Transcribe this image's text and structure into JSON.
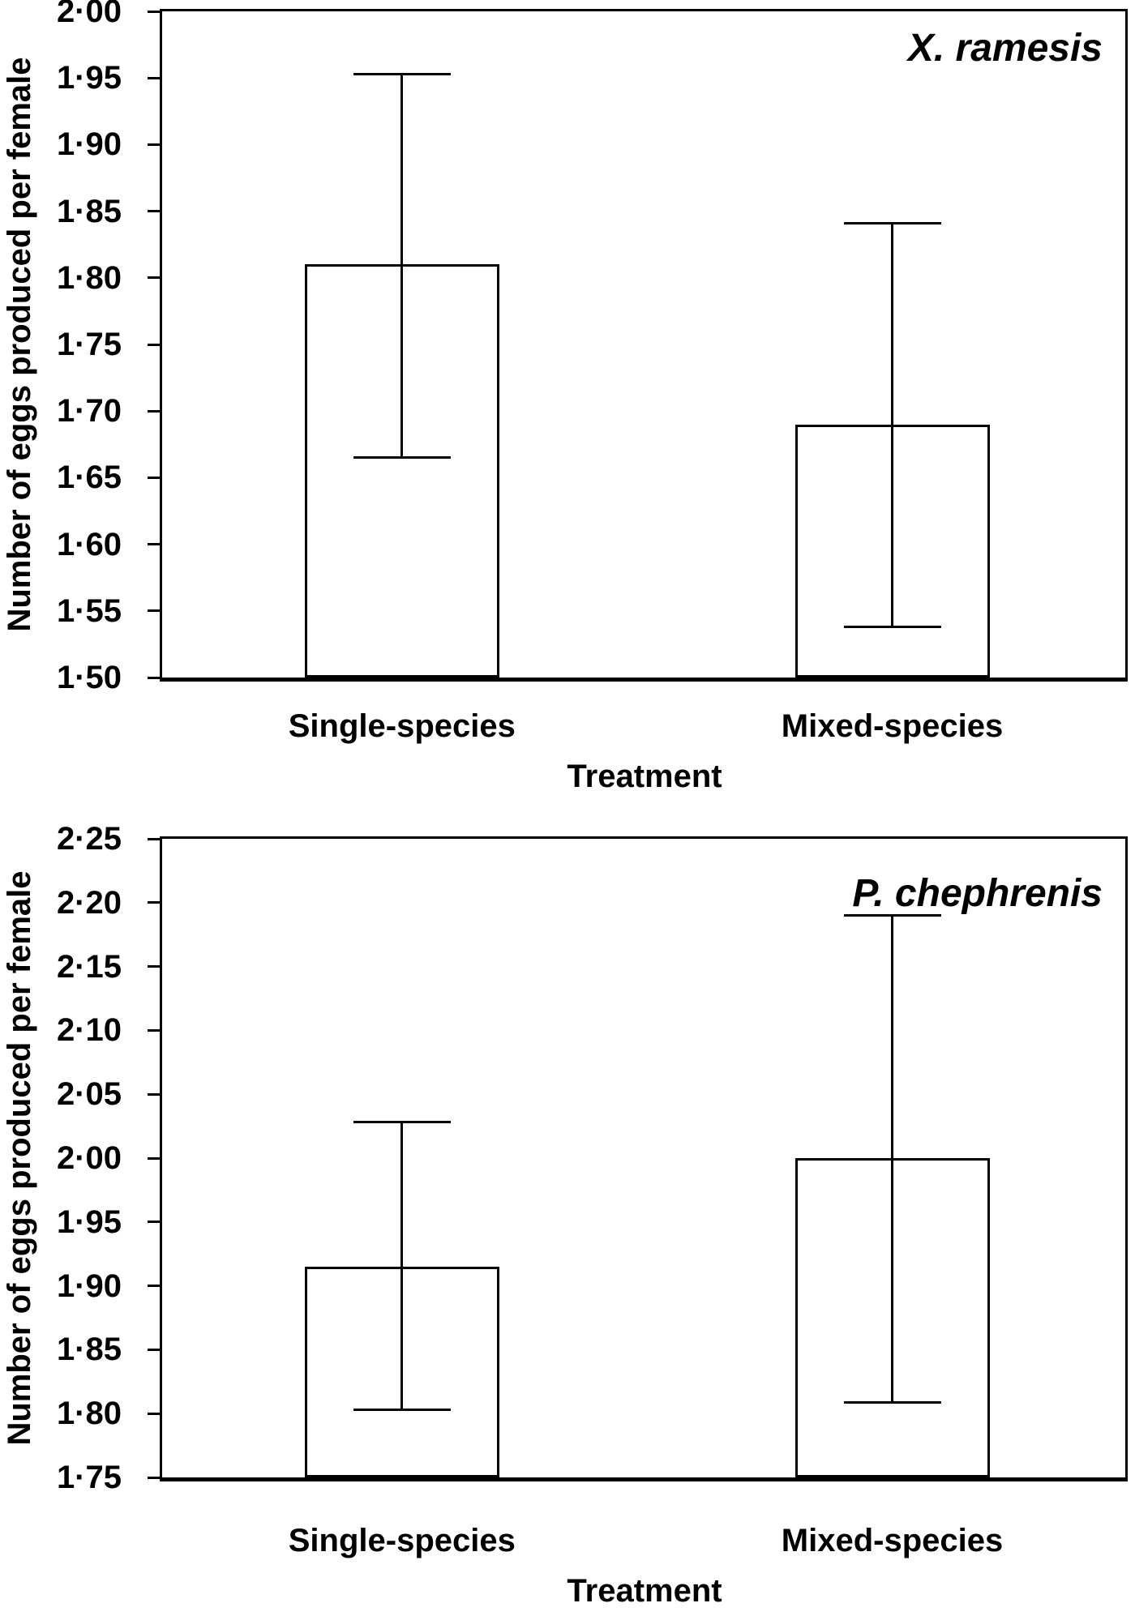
{
  "page": {
    "background": "#ffffff",
    "ink_color": "#000000",
    "decimal_separator": "·"
  },
  "chart_data": [
    {
      "type": "bar",
      "title": "X. ramesis",
      "categories": [
        "Single-species",
        "Mixed-species"
      ],
      "values": [
        1.81,
        1.69
      ],
      "error_high": [
        1.953,
        1.841
      ],
      "error_low": [
        1.665,
        1.538
      ],
      "xlabel": "Treatment",
      "ylabel": "Number of eggs produced per female",
      "ylim": [
        1.5,
        2.0
      ],
      "ytick_step": 0.05,
      "y_tick_labels": [
        "2·00",
        "1·95",
        "1·90",
        "1·85",
        "1·80",
        "1·75",
        "1·70",
        "1·65",
        "1·60",
        "1·55",
        "1·50"
      ],
      "grid": false,
      "legend": "none",
      "bar_fill": "#ffffff",
      "bar_edge": "#000000",
      "error_caps": true
    },
    {
      "type": "bar",
      "title": "P. chephrenis",
      "categories": [
        "Single-species",
        "Mixed-species"
      ],
      "values": [
        1.915,
        2.0
      ],
      "error_high": [
        2.028,
        2.19
      ],
      "error_low": [
        1.803,
        1.809
      ],
      "xlabel": "Treatment",
      "ylabel": "Number of eggs produced per female",
      "ylim": [
        1.75,
        2.25
      ],
      "ytick_step": 0.05,
      "y_tick_labels": [
        "2·25",
        "2·20",
        "2·15",
        "2·10",
        "2·05",
        "2·00",
        "1·95",
        "1·90",
        "1·85",
        "1·80",
        "1·75"
      ],
      "grid": false,
      "legend": "none",
      "bar_fill": "#ffffff",
      "bar_edge": "#000000",
      "error_caps": true
    }
  ]
}
